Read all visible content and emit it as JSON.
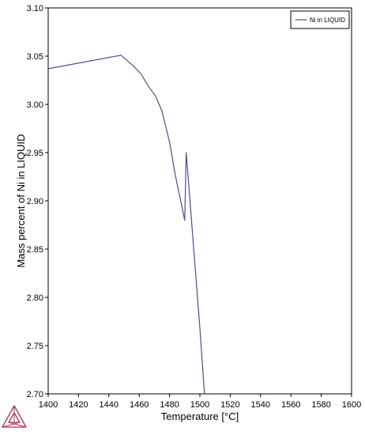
{
  "chart_data": {
    "type": "line",
    "xlabel": "Temperature [°C]",
    "ylabel": "Mass percent of Ni in LIQUID",
    "xlim": [
      1400,
      1600
    ],
    "ylim": [
      2.7,
      3.1
    ],
    "x_ticks": [
      "1400",
      "1420",
      "1440",
      "1460",
      "1480",
      "1500",
      "1520",
      "1540",
      "1560",
      "1580",
      "1600"
    ],
    "y_ticks": [
      "2.70",
      "2.75",
      "2.80",
      "2.85",
      "2.90",
      "2.95",
      "3.00",
      "3.05",
      "3.10"
    ],
    "grid": false,
    "legend_position": "top-right",
    "series": [
      {
        "name": "Ni in LIQUID",
        "color": "#4a4f96",
        "points": [
          [
            1400,
            3.037
          ],
          [
            1448,
            3.051
          ],
          [
            1456,
            3.04
          ],
          [
            1461,
            3.032
          ],
          [
            1466,
            3.019
          ],
          [
            1471,
            3.008
          ],
          [
            1475,
            2.993
          ],
          [
            1480,
            2.961
          ],
          [
            1484,
            2.925
          ],
          [
            1490,
            2.88
          ],
          [
            1491,
            2.95
          ],
          [
            1500,
            2.768
          ],
          [
            1503,
            2.7
          ]
        ]
      }
    ]
  },
  "logo": {
    "name": "thermo-calc-logo",
    "color": "#b5334e"
  }
}
